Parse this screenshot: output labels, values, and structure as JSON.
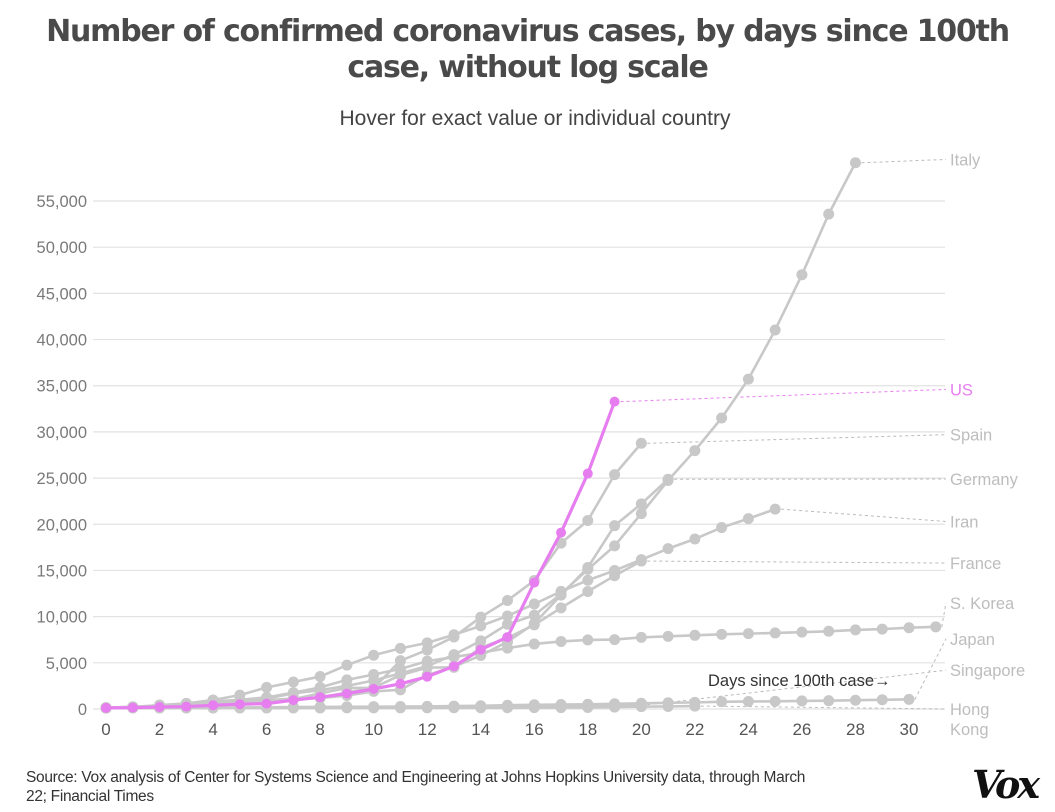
{
  "header": {
    "title_line1": "Number of confirmed coronavirus cases, by days since 100th",
    "title_line2": "case, without log scale",
    "subtitle": "Hover for exact value or individual country"
  },
  "footer": {
    "source_line1": "Source: Vox analysis of Center for Systems Science and Engineering at Johns Hopkins University data, through March",
    "source_line2": "22; Financial Times",
    "logo": "Vox"
  },
  "colors": {
    "highlight": "#e77ef0",
    "series": "#c8c8c8",
    "label": "#bdbdbd",
    "grid": "#e2e2e2",
    "axis_text": "#7a7a7a"
  },
  "chart_data": {
    "type": "line",
    "title": "Number of confirmed coronavirus cases, by days since 100th case, without log scale",
    "subtitle": "Hover for exact value or individual country",
    "xlabel": "Days since 100th case→",
    "ylabel": "",
    "xlim": [
      0,
      30
    ],
    "ylim": [
      0,
      55000
    ],
    "xticks": [
      0,
      2,
      4,
      6,
      8,
      10,
      12,
      14,
      16,
      18,
      20,
      22,
      24,
      26,
      28,
      30
    ],
    "yticks": [
      0,
      5000,
      10000,
      15000,
      20000,
      25000,
      30000,
      35000,
      40000,
      45000,
      50000,
      55000
    ],
    "ytick_labels": [
      "0",
      "5,000",
      "10,000",
      "15,000",
      "20,000",
      "25,000",
      "30,000",
      "35,000",
      "40,000",
      "45,000",
      "50,000",
      "55,000"
    ],
    "grid": true,
    "legend": "direct-labels-right",
    "highlight_series": "US",
    "series": [
      {
        "name": "Italy",
        "label_value": 59500,
        "values": [
          155,
          229,
          322,
          453,
          655,
          888,
          1128,
          1694,
          2036,
          2502,
          3089,
          3858,
          4636,
          5883,
          7375,
          9172,
          10149,
          12462,
          15113,
          17660,
          21157,
          24747,
          27980,
          31506,
          35713,
          41035,
          47021,
          53578,
          59138
        ]
      },
      {
        "name": "US",
        "label_value": 34600,
        "values": [
          118,
          149,
          217,
          262,
          402,
          518,
          583,
          959,
          1281,
          1663,
          2179,
          2727,
          3499,
          4632,
          6421,
          7786,
          13680,
          19101,
          25493,
          33276
        ]
      },
      {
        "name": "Spain",
        "label_value": 29700,
        "values": [
          120,
          165,
          222,
          259,
          400,
          500,
          673,
          1073,
          1695,
          2277,
          2277,
          5232,
          6391,
          7798,
          9942,
          11748,
          13910,
          17963,
          20410,
          25374,
          28768
        ]
      },
      {
        "name": "Germany",
        "label_value": 24900,
        "values": [
          130,
          159,
          196,
          262,
          482,
          670,
          799,
          1040,
          1176,
          1457,
          1908,
          2078,
          3675,
          4585,
          5795,
          7272,
          9257,
          12327,
          15320,
          19848,
          22213,
          24873
        ]
      },
      {
        "name": "Iran",
        "label_value": 20300,
        "values": [
          139,
          245,
          388,
          593,
          978,
          1501,
          2336,
          2922,
          3513,
          4747,
          5823,
          6566,
          7161,
          8042,
          9000,
          10075,
          11364,
          12729,
          13938,
          14991,
          16169,
          17361,
          18407,
          19644,
          20610,
          21638
        ]
      },
      {
        "name": "France",
        "label_value": 15800,
        "values": [
          130,
          191,
          204,
          288,
          380,
          656,
          957,
          1134,
          1217,
          1792,
          2289,
          3672,
          4480,
          4513,
          6650,
          7699,
          9105,
          10947,
          12726,
          14431,
          16018
        ]
      },
      {
        "name": "S. Korea",
        "label_value": 11500,
        "values": [
          104,
          204,
          433,
          602,
          833,
          977,
          1261,
          1766,
          2337,
          3150,
          3736,
          4335,
          5186,
          5621,
          6088,
          6593,
          7041,
          7314,
          7478,
          7513,
          7755,
          7869,
          7979,
          8086,
          8162,
          8236,
          8320,
          8413,
          8565,
          8652,
          8799,
          8897
        ]
      },
      {
        "name": "Japan",
        "label_value": 7600,
        "values": [
          105,
          132,
          144,
          144,
          156,
          164,
          186,
          210,
          230,
          239,
          254,
          268,
          284,
          317,
          349,
          408,
          455,
          488,
          514,
          568,
          620,
          675,
          716,
          780,
          814,
          829,
          873,
          900,
          950,
          1000,
          1046
        ]
      },
      {
        "name": "Singapore",
        "label_value": 4200,
        "values": [
          108,
          110,
          110,
          117,
          130,
          138,
          150,
          150,
          160,
          178,
          178,
          200,
          212,
          226,
          243,
          266,
          313,
          345,
          385,
          432,
          455
        ]
      },
      {
        "name": "Hong Kong",
        "label_value": 0,
        "values": [
          100,
          105,
          105,
          107,
          108,
          109,
          109,
          109,
          115,
          120,
          126,
          129,
          130,
          131,
          137,
          141,
          149,
          155,
          162,
          208,
          256,
          273,
          317
        ]
      }
    ],
    "annotations": [
      {
        "text": "Days since 100th case→",
        "near_x": 26,
        "near_y": 3200
      }
    ]
  }
}
